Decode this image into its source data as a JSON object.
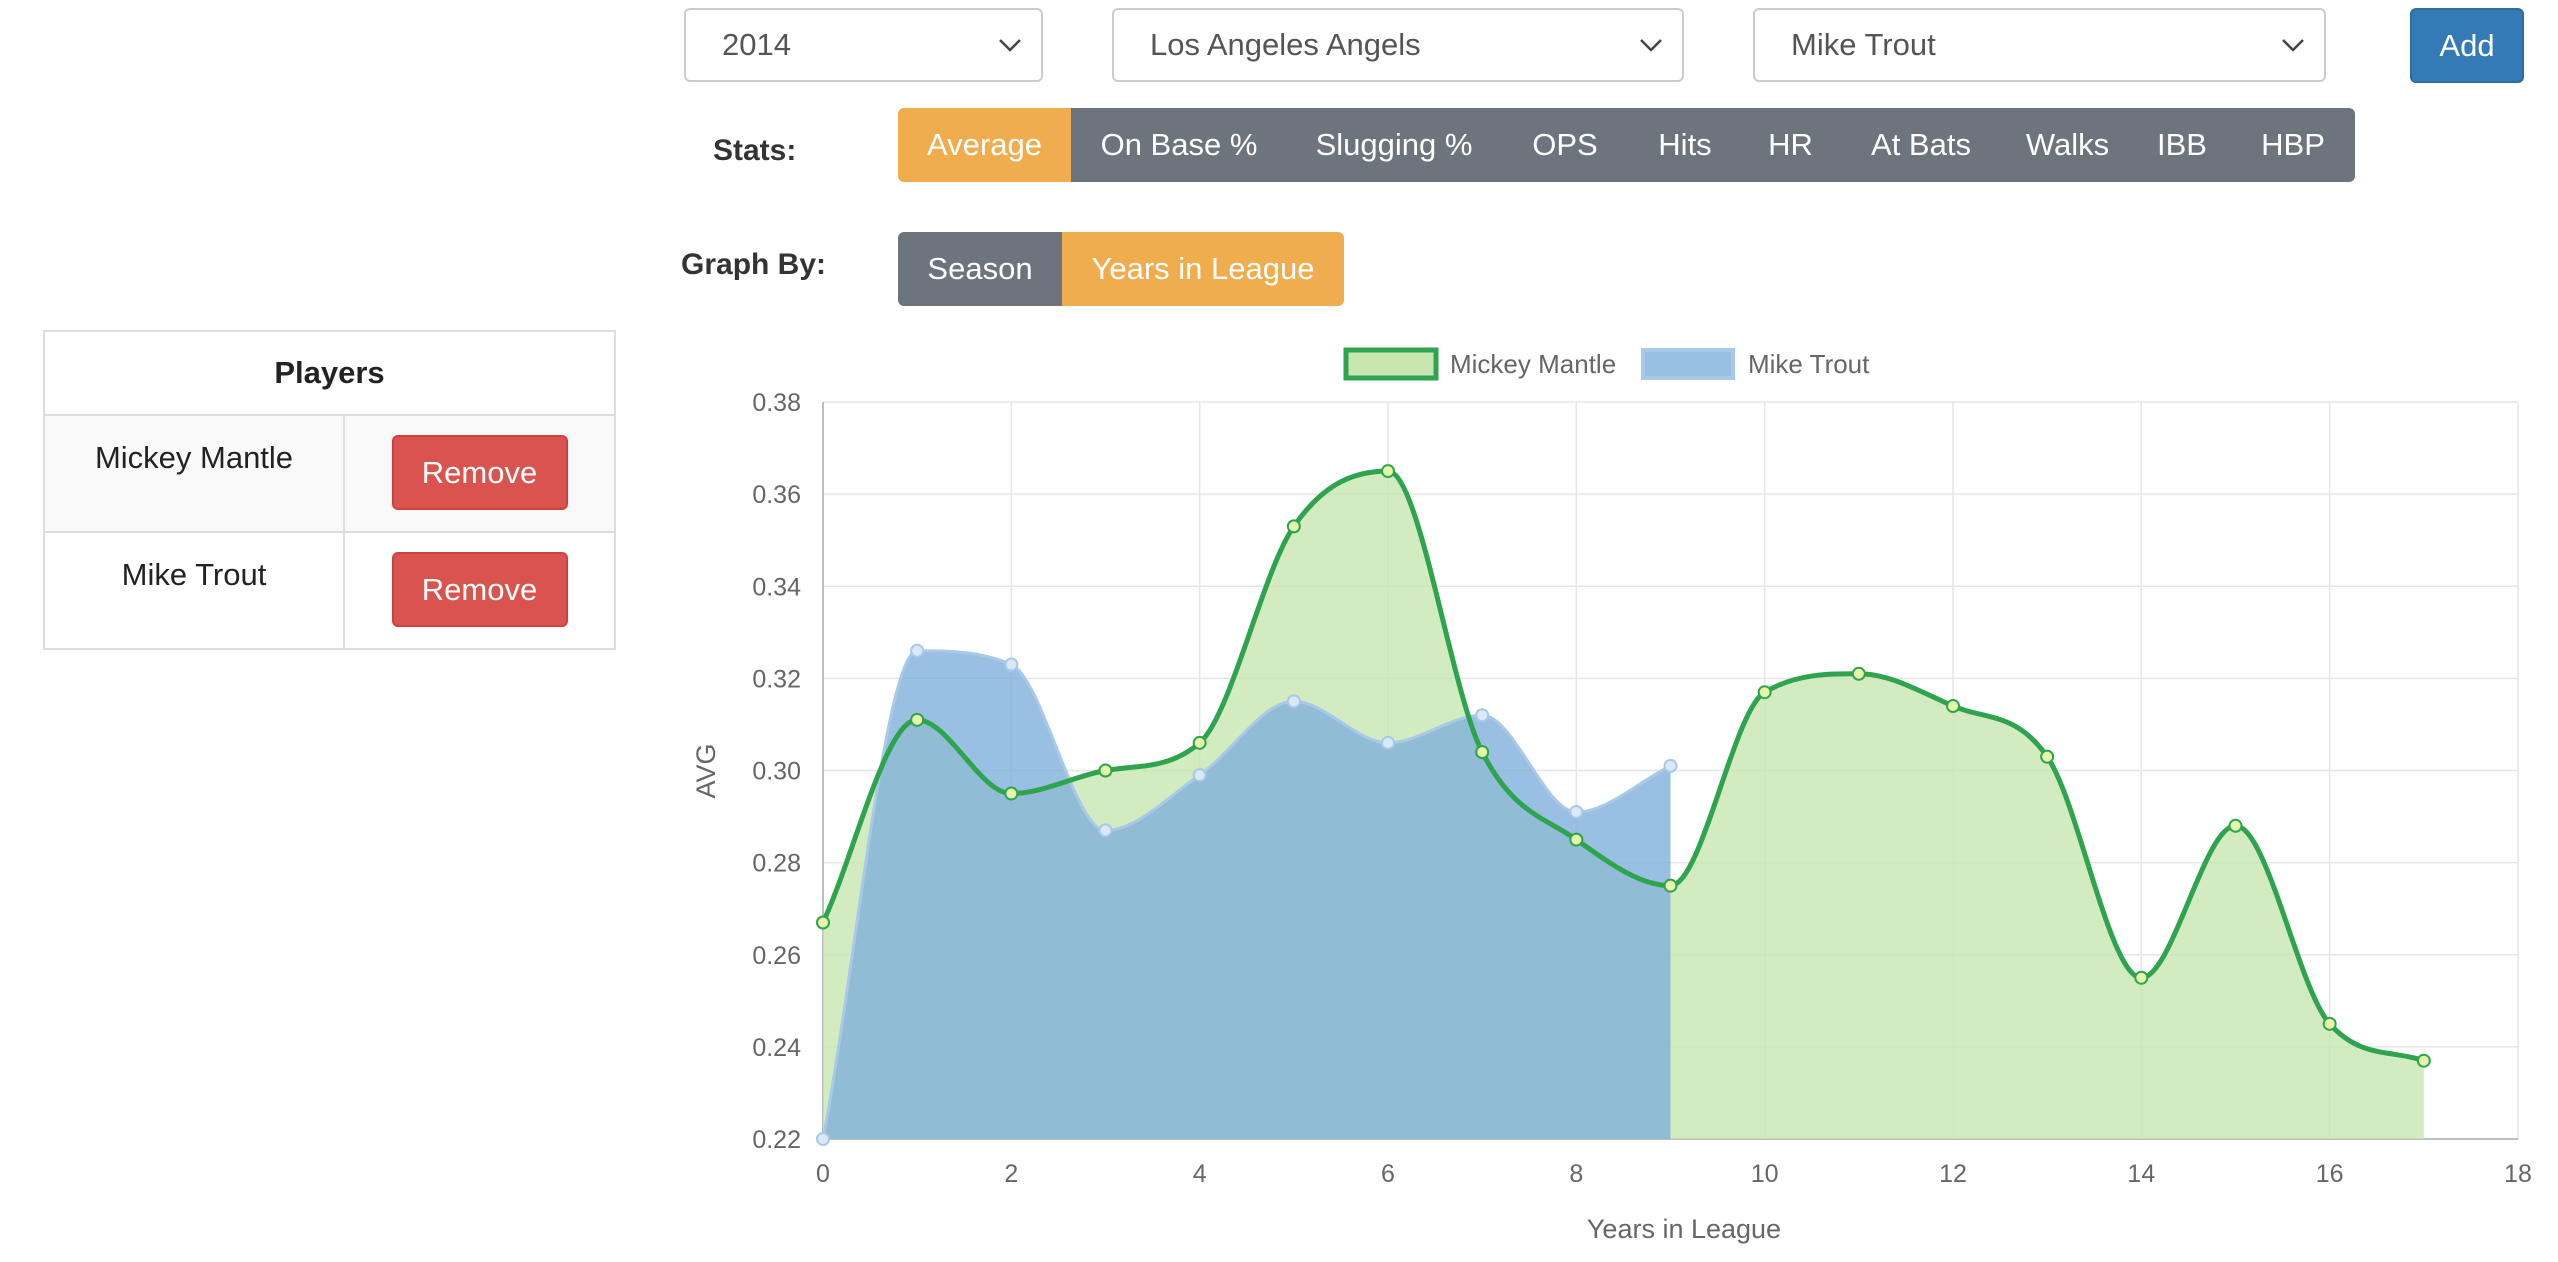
{
  "selectors": {
    "year": "2014",
    "team": "Los Angeles Angels",
    "player": "Mike Trout",
    "add_label": "Add"
  },
  "stats": {
    "label": "Stats:",
    "options": [
      "Average",
      "On Base %",
      "Slugging %",
      "OPS",
      "Hits",
      "HR",
      "At Bats",
      "Walks",
      "IBB",
      "HBP"
    ],
    "active": "Average"
  },
  "graph_by": {
    "label": "Graph By:",
    "options": [
      "Season",
      "Years in League"
    ],
    "active": "Years in League"
  },
  "players_table": {
    "header": "Players",
    "rows": [
      {
        "name": "Mickey Mantle",
        "action": "Remove"
      },
      {
        "name": "Mike Trout",
        "action": "Remove"
      }
    ]
  },
  "colors": {
    "accent_orange": "#f0ad4e",
    "button_gray": "#6c757d",
    "add_blue": "#337ab7",
    "remove_red": "#d9534f",
    "mantle_line": "#2ea44f",
    "mantle_fill": "#c8e6b0",
    "trout_line": "#a8c9e8",
    "trout_fill": "#80b0db"
  },
  "chart_data": {
    "type": "area",
    "xlabel": "Years in League",
    "ylabel": "AVG",
    "xlim": [
      0,
      18
    ],
    "ylim": [
      0.22,
      0.38
    ],
    "xticks": [
      "0",
      "2",
      "4",
      "6",
      "8",
      "10",
      "12",
      "14",
      "16",
      "18"
    ],
    "yticks": [
      "0.22",
      "0.24",
      "0.26",
      "0.28",
      "0.30",
      "0.32",
      "0.34",
      "0.36",
      "0.38"
    ],
    "grid": true,
    "legend_position": "top-center",
    "series": [
      {
        "name": "Mickey Mantle",
        "x": [
          0,
          1,
          2,
          3,
          4,
          5,
          6,
          7,
          8,
          9,
          10,
          11,
          12,
          13,
          14,
          15,
          16,
          17
        ],
        "values": [
          0.267,
          0.311,
          0.295,
          0.3,
          0.306,
          0.353,
          0.365,
          0.304,
          0.285,
          0.275,
          0.317,
          0.321,
          0.314,
          0.303,
          0.255,
          0.288,
          0.245,
          0.237
        ]
      },
      {
        "name": "Mike Trout",
        "x": [
          0,
          1,
          2,
          3,
          4,
          5,
          6,
          7,
          8,
          9
        ],
        "values": [
          0.22,
          0.326,
          0.323,
          0.287,
          0.299,
          0.315,
          0.306,
          0.312,
          0.291,
          0.301
        ]
      }
    ]
  }
}
